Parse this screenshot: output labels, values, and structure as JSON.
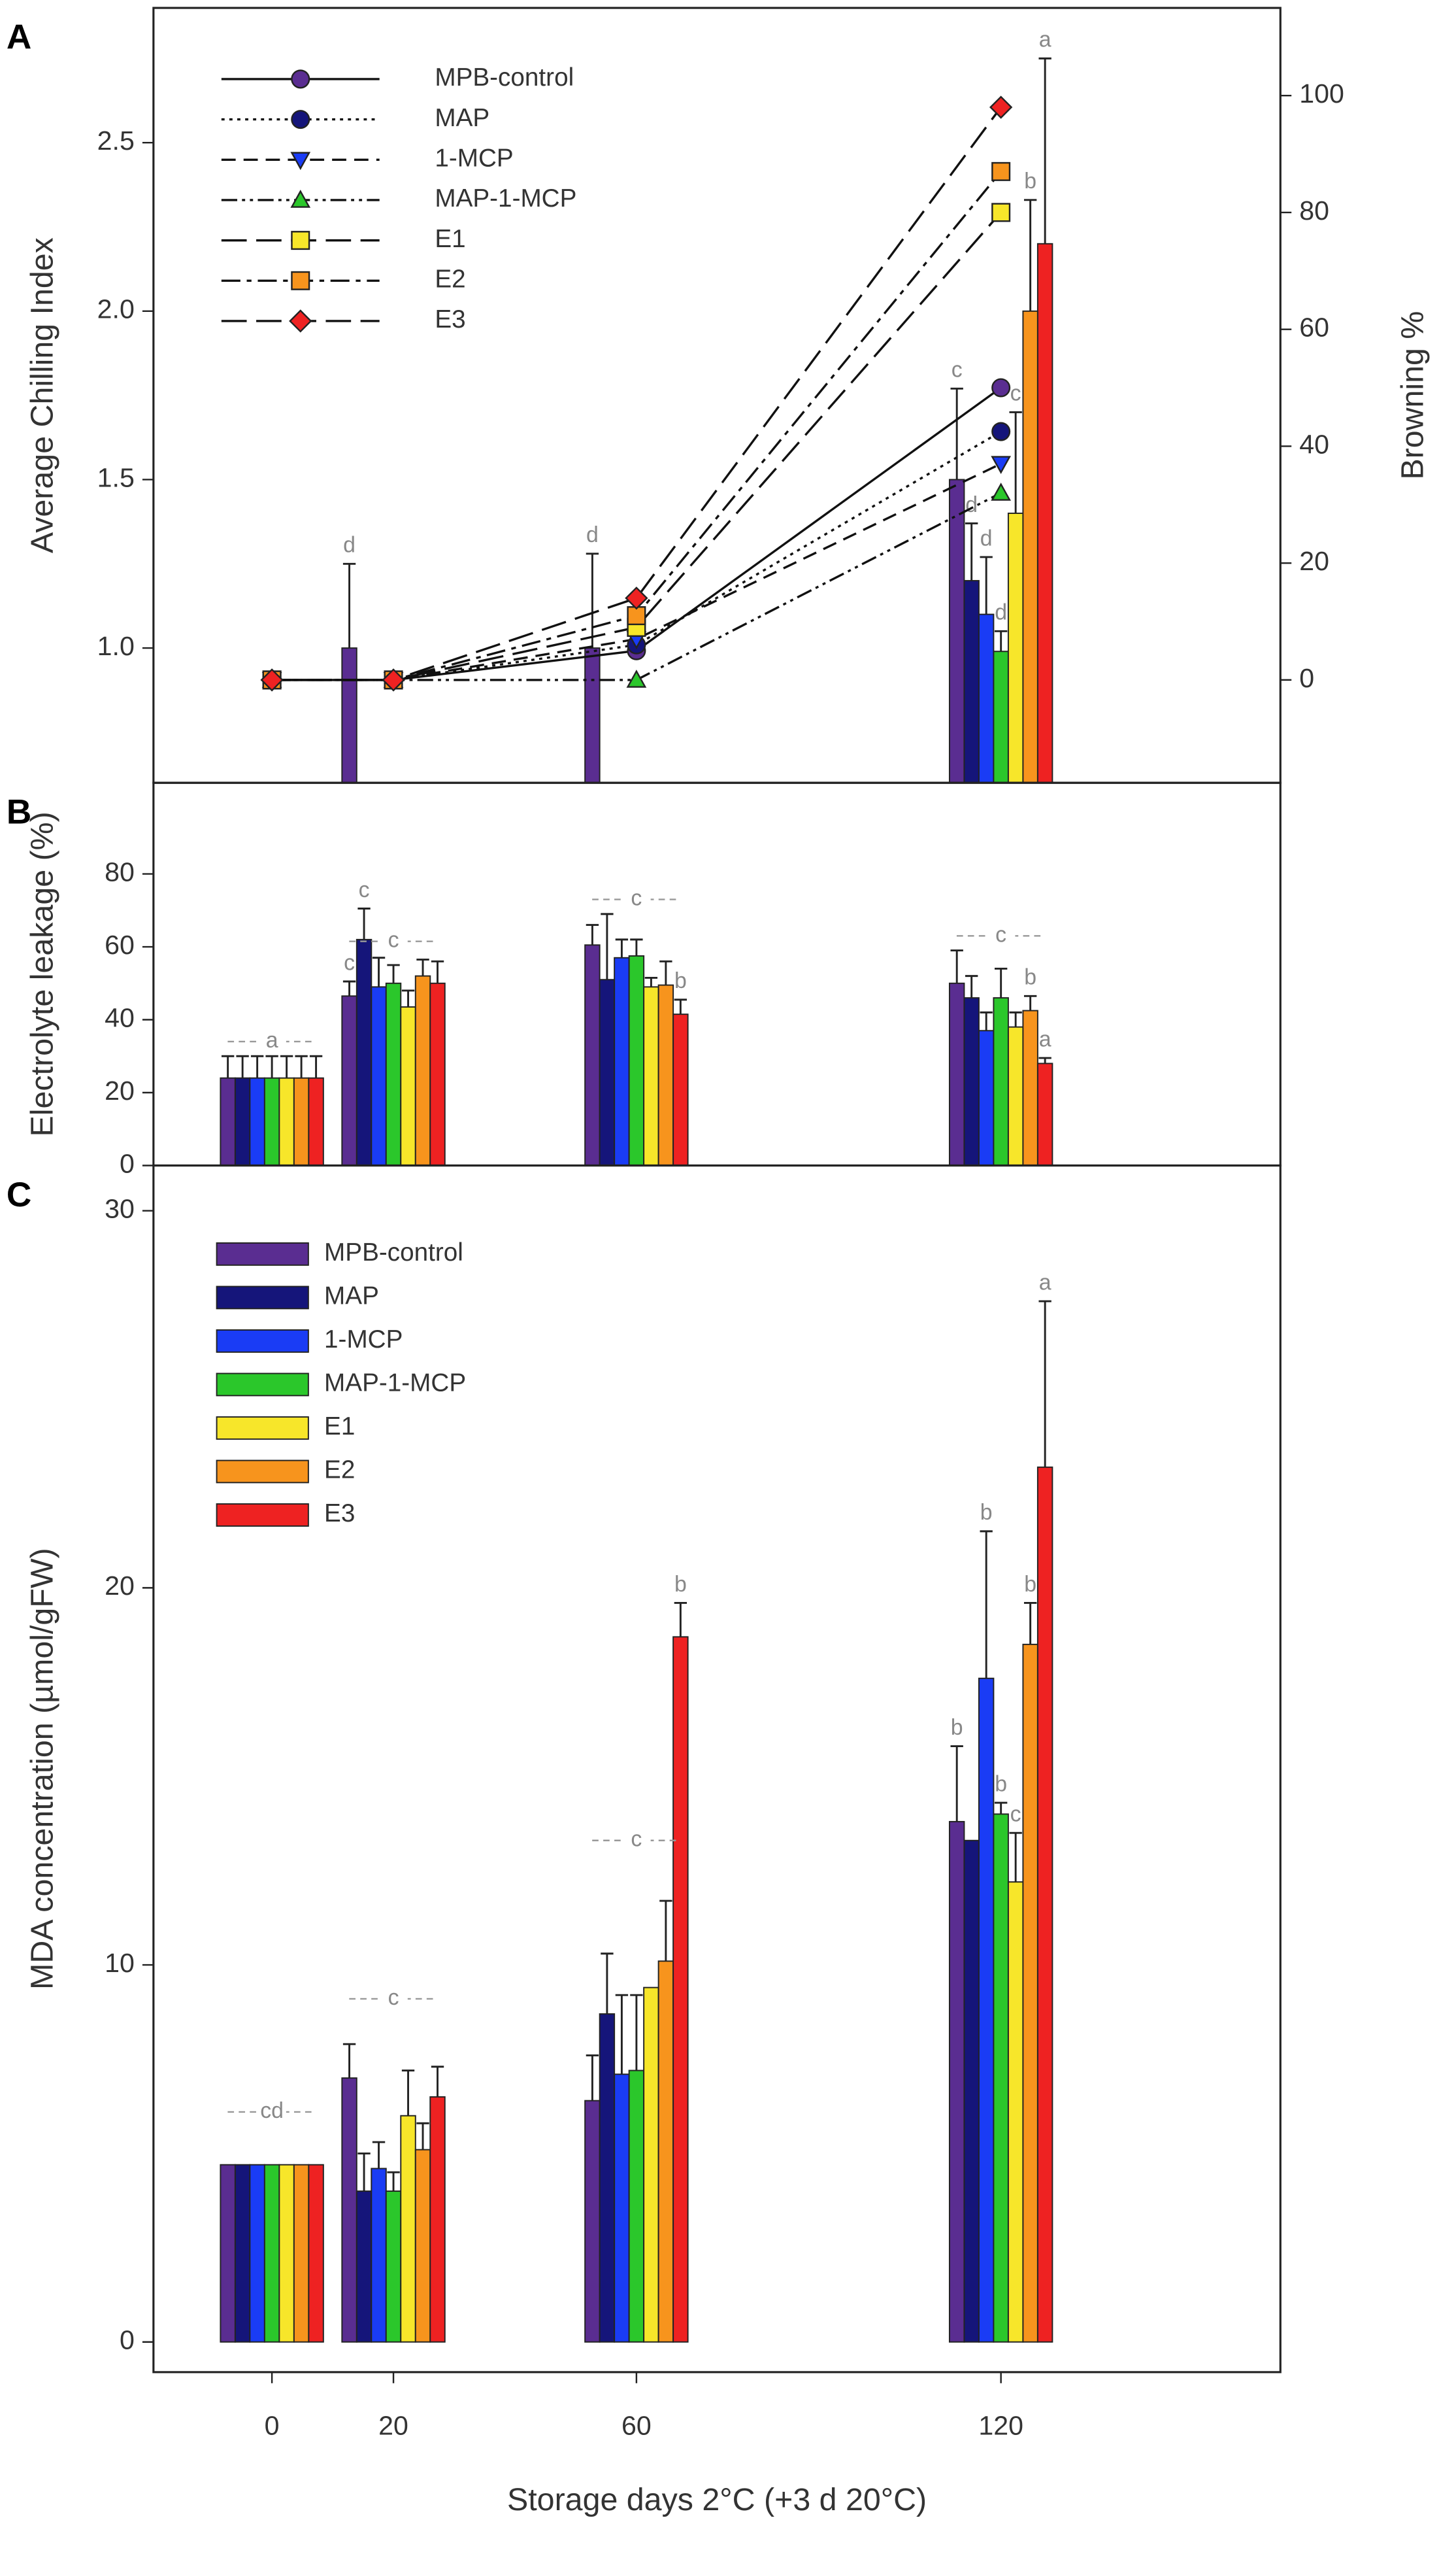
{
  "chart_data": [
    {
      "type": "combo",
      "panel": "A",
      "ylabel": "Average Chilling Index",
      "y2label": "Browning %",
      "x": [
        0,
        20,
        60,
        120
      ],
      "xlim": [
        -19.5,
        166
      ],
      "ylim": [
        0.6,
        2.9
      ],
      "yticks": [
        {
          "value": 1,
          "label": "1.0"
        },
        1.5,
        {
          "value": 2,
          "label": "2.0"
        },
        2.5
      ],
      "y2lim": [
        -17.6,
        115
      ],
      "y2ticks": [
        0,
        20,
        40,
        60,
        80,
        100
      ],
      "bar_series": [
        {
          "color": "#5a2d91",
          "values": [
            null,
            1.0,
            1.0,
            1.5
          ],
          "errors": [
            null,
            0.25,
            0.28,
            0.27
          ],
          "letters": [
            null,
            "d",
            "d",
            "c"
          ]
        },
        {
          "color": "#15157a",
          "values": [
            null,
            null,
            null,
            1.2
          ],
          "errors": [
            null,
            null,
            null,
            0.17
          ],
          "letters": [
            null,
            null,
            null,
            "d"
          ]
        },
        {
          "color": "#1a3cf5",
          "values": [
            null,
            null,
            null,
            1.1
          ],
          "errors": [
            null,
            null,
            null,
            0.17
          ],
          "letters": [
            null,
            null,
            null,
            "d"
          ]
        },
        {
          "color": "#2bc72b",
          "values": [
            null,
            null,
            null,
            0.99
          ],
          "errors": [
            null,
            null,
            null,
            0.06
          ],
          "letters": [
            null,
            null,
            null,
            "d"
          ]
        },
        {
          "color": "#f7e62a",
          "values": [
            null,
            null,
            null,
            1.4
          ],
          "errors": [
            null,
            null,
            null,
            0.3
          ],
          "letters": [
            null,
            null,
            null,
            "c"
          ]
        },
        {
          "color": "#f7941d",
          "values": [
            null,
            null,
            null,
            2.0
          ],
          "errors": [
            null,
            null,
            null,
            0.33
          ],
          "letters": [
            null,
            null,
            null,
            "b"
          ]
        },
        {
          "color": "#ee2222",
          "values": [
            null,
            null,
            null,
            2.2
          ],
          "errors": [
            null,
            null,
            null,
            0.55
          ],
          "letters": [
            null,
            null,
            null,
            "a"
          ]
        }
      ],
      "series": [
        {
          "name": "MPB-control",
          "color": "#5a2d91",
          "axis": "y2",
          "marker": "circle",
          "linestyle": "solid",
          "values": [
            0,
            0,
            5,
            50
          ]
        },
        {
          "name": "MAP",
          "color": "#15157a",
          "axis": "y2",
          "marker": "circle",
          "linestyle": "dotted",
          "values": [
            0,
            0,
            6,
            42.5
          ]
        },
        {
          "name": "1-MCP",
          "color": "#1a3cf5",
          "axis": "y2",
          "marker": "triangle-down",
          "linestyle": "dashed",
          "values": [
            0,
            0,
            7,
            37
          ]
        },
        {
          "name": "MAP-1-MCP",
          "color": "#2bc72b",
          "axis": "y2",
          "marker": "triangle-up",
          "linestyle": "dashdotdot",
          "values": [
            0,
            0,
            0,
            32
          ]
        },
        {
          "name": "E1",
          "color": "#f7e62a",
          "axis": "y2",
          "marker": "square",
          "linestyle": "longdash",
          "values": [
            0,
            0,
            9,
            80
          ]
        },
        {
          "name": "E2",
          "color": "#f7941d",
          "axis": "y2",
          "marker": "square",
          "linestyle": "dashdot",
          "values": [
            0,
            0,
            11,
            87
          ]
        },
        {
          "name": "E3",
          "color": "#ee2222",
          "axis": "y2",
          "marker": "diamond",
          "linestyle": "longdash",
          "values": [
            0,
            0,
            14,
            98
          ]
        }
      ]
    },
    {
      "type": "bar",
      "panel": "B",
      "ylabel": "Electrolyte leakage (%)",
      "x": [
        0,
        20,
        60,
        120
      ],
      "xlim": [
        -19.5,
        166
      ],
      "ylim": [
        0,
        105
      ],
      "yticks": [
        0,
        20,
        40,
        60,
        80
      ],
      "series": [
        {
          "name": "MPB-control",
          "color": "#5a2d91",
          "values": [
            24,
            46.5,
            60.5,
            50
          ],
          "errors": [
            6,
            4,
            5.5,
            9
          ],
          "letters": [
            null,
            "c",
            null,
            null
          ]
        },
        {
          "name": "MAP",
          "color": "#15157a",
          "values": [
            24,
            62,
            51,
            46
          ],
          "errors": [
            6,
            8.5,
            18,
            6
          ],
          "letters": [
            null,
            "c",
            null,
            null
          ]
        },
        {
          "name": "1-MCP",
          "color": "#1a3cf5",
          "values": [
            24,
            49,
            57,
            37
          ],
          "errors": [
            6,
            8,
            5,
            5
          ],
          "letters": [
            null,
            null,
            null,
            null
          ]
        },
        {
          "name": "MAP-1-MCP",
          "color": "#2bc72b",
          "values": [
            24,
            50,
            57.5,
            46
          ],
          "errors": [
            6,
            5,
            4.5,
            8
          ],
          "letters": [
            null,
            null,
            null,
            null
          ]
        },
        {
          "name": "E1",
          "color": "#f7e62a",
          "values": [
            24,
            43.5,
            49,
            38
          ],
          "errors": [
            6,
            4.5,
            2.5,
            4
          ],
          "letters": [
            null,
            null,
            null,
            null
          ]
        },
        {
          "name": "E2",
          "color": "#f7941d",
          "values": [
            24,
            52,
            49.5,
            42.5
          ],
          "errors": [
            6,
            4.5,
            6.5,
            4
          ],
          "letters": [
            null,
            null,
            null,
            "b"
          ]
        },
        {
          "name": "E3",
          "color": "#ee2222",
          "values": [
            24,
            50,
            41.5,
            28
          ],
          "errors": [
            6,
            6,
            4,
            1.5
          ],
          "letters": [
            null,
            null,
            "b",
            "a"
          ]
        }
      ],
      "groups": [
        {
          "x": 0,
          "y": 34,
          "label": "a"
        },
        {
          "x": 20,
          "y": 61.5,
          "label": "c"
        },
        {
          "x": 60,
          "y": 73,
          "label": "c"
        },
        {
          "x": 120,
          "y": 63,
          "label": "c"
        }
      ]
    },
    {
      "type": "bar",
      "panel": "C",
      "ylabel": "MDA concentration (µmol/gFW)",
      "xlabel": "Storage days 2°C (+3 d 20°C)",
      "legend": true,
      "x": [
        0,
        20,
        60,
        120
      ],
      "xlim": [
        -19.5,
        166
      ],
      "xticks": [
        0,
        20,
        60,
        120
      ],
      "ylim": [
        -0.8,
        31.2
      ],
      "yticks": [
        0,
        10,
        20,
        30
      ],
      "series": [
        {
          "name": "MPB-control",
          "color": "#5a2d91",
          "values": [
            4.7,
            7.0,
            6.4,
            13.8
          ],
          "errors": [
            null,
            0.9,
            1.2,
            2.0
          ],
          "letters": [
            null,
            null,
            null,
            "b"
          ]
        },
        {
          "name": "MAP",
          "color": "#15157a",
          "values": [
            4.7,
            4.0,
            8.7,
            13.3
          ],
          "errors": [
            null,
            1.0,
            1.6,
            null
          ],
          "letters": [
            null,
            null,
            null,
            null
          ]
        },
        {
          "name": "1-MCP",
          "color": "#1a3cf5",
          "values": [
            4.7,
            4.6,
            7.1,
            17.6
          ],
          "errors": [
            null,
            0.7,
            2.1,
            3.9
          ],
          "letters": [
            null,
            null,
            null,
            "b"
          ]
        },
        {
          "name": "MAP-1-MCP",
          "color": "#2bc72b",
          "values": [
            4.7,
            4.0,
            7.2,
            14.0
          ],
          "errors": [
            null,
            0.5,
            2.0,
            0.3
          ],
          "letters": [
            null,
            null,
            null,
            "b"
          ]
        },
        {
          "name": "E1",
          "color": "#f7e62a",
          "values": [
            4.7,
            6.0,
            9.4,
            12.2
          ],
          "errors": [
            null,
            1.2,
            null,
            1.3
          ],
          "letters": [
            null,
            null,
            null,
            "c"
          ]
        },
        {
          "name": "E2",
          "color": "#f7941d",
          "values": [
            4.7,
            5.1,
            10.1,
            18.5
          ],
          "errors": [
            null,
            0.7,
            1.6,
            1.1
          ],
          "letters": [
            null,
            null,
            null,
            "b"
          ]
        },
        {
          "name": "E3",
          "color": "#ee2222",
          "values": [
            4.7,
            6.5,
            18.7,
            23.2
          ],
          "errors": [
            null,
            0.8,
            0.9,
            4.4
          ],
          "letters": [
            null,
            null,
            "b",
            "a"
          ]
        }
      ],
      "groups": [
        {
          "x": 0,
          "y": 6.1,
          "label": "cd"
        },
        {
          "x": 20,
          "y": 9.1,
          "label": "c"
        },
        {
          "x": 60,
          "y": 13.3,
          "label": "c"
        }
      ]
    }
  ]
}
